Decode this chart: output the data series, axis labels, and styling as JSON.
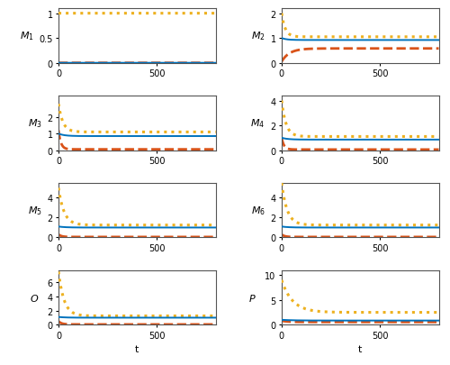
{
  "panels": [
    {
      "label": "M_1",
      "ylim": [
        0,
        1.1
      ],
      "yticks": [
        0,
        0.5,
        1
      ],
      "curves": [
        {
          "color": "#0072BD",
          "ls": "solid",
          "lw": 1.4,
          "start": 0.0,
          "steady": 0.0,
          "tau": 0
        },
        {
          "color": "#D95319",
          "ls": "dashed",
          "lw": 2.0,
          "start": 0.0,
          "steady": 0.0,
          "tau": 0
        },
        {
          "color": "#EDB120",
          "ls": "dotted",
          "lw": 2.2,
          "start": 1.0,
          "steady": 1.0,
          "tau": 0
        }
      ]
    },
    {
      "label": "M_2",
      "ylim": [
        0,
        2.2
      ],
      "yticks": [
        0,
        1,
        2
      ],
      "curves": [
        {
          "color": "#0072BD",
          "ls": "solid",
          "lw": 1.4,
          "start": 1.0,
          "steady": 0.92,
          "tau": 25
        },
        {
          "color": "#D95319",
          "ls": "dashed",
          "lw": 2.0,
          "start": 0.05,
          "steady": 0.58,
          "tau": 40
        },
        {
          "color": "#EDB120",
          "ls": "dotted",
          "lw": 2.2,
          "start": 2.0,
          "steady": 1.05,
          "tau": 18
        }
      ]
    },
    {
      "label": "M_3",
      "ylim": [
        0,
        3.3
      ],
      "yticks": [
        0,
        1,
        2
      ],
      "curves": [
        {
          "color": "#0072BD",
          "ls": "solid",
          "lw": 1.4,
          "start": 1.0,
          "steady": 0.85,
          "tau": 30
        },
        {
          "color": "#D95319",
          "ls": "dashed",
          "lw": 2.0,
          "start": 1.2,
          "steady": 0.05,
          "tau": 12
        },
        {
          "color": "#EDB120",
          "ls": "dotted",
          "lw": 2.2,
          "start": 2.8,
          "steady": 1.1,
          "tau": 22
        }
      ]
    },
    {
      "label": "M_4",
      "ylim": [
        0,
        4.4
      ],
      "yticks": [
        0,
        2,
        4
      ],
      "curves": [
        {
          "color": "#0072BD",
          "ls": "solid",
          "lw": 1.4,
          "start": 1.0,
          "steady": 0.85,
          "tau": 30
        },
        {
          "color": "#D95319",
          "ls": "dashed",
          "lw": 2.0,
          "start": 1.0,
          "steady": 0.05,
          "tau": 12
        },
        {
          "color": "#EDB120",
          "ls": "dotted",
          "lw": 2.2,
          "start": 4.0,
          "steady": 1.1,
          "tau": 22
        }
      ]
    },
    {
      "label": "M_5",
      "ylim": [
        0,
        5.5
      ],
      "yticks": [
        0,
        2,
        4
      ],
      "curves": [
        {
          "color": "#0072BD",
          "ls": "solid",
          "lw": 1.4,
          "start": 1.1,
          "steady": 1.0,
          "tau": 35
        },
        {
          "color": "#D95319",
          "ls": "dashed",
          "lw": 2.0,
          "start": 0.3,
          "steady": 0.05,
          "tau": 15
        },
        {
          "color": "#EDB120",
          "ls": "dotted",
          "lw": 2.2,
          "start": 5.0,
          "steady": 1.25,
          "tau": 28
        }
      ]
    },
    {
      "label": "M_6",
      "ylim": [
        0,
        5.5
      ],
      "yticks": [
        0,
        2,
        4
      ],
      "curves": [
        {
          "color": "#0072BD",
          "ls": "solid",
          "lw": 1.4,
          "start": 1.1,
          "steady": 1.0,
          "tau": 35
        },
        {
          "color": "#D95319",
          "ls": "dashed",
          "lw": 2.0,
          "start": 0.3,
          "steady": 0.05,
          "tau": 15
        },
        {
          "color": "#EDB120",
          "ls": "dotted",
          "lw": 2.2,
          "start": 5.5,
          "steady": 1.25,
          "tau": 28
        }
      ]
    },
    {
      "label": "O",
      "ylim": [
        0,
        7.7
      ],
      "yticks": [
        0,
        2,
        4,
        6
      ],
      "curves": [
        {
          "color": "#0072BD",
          "ls": "solid",
          "lw": 1.4,
          "start": 1.1,
          "steady": 1.0,
          "tau": 35
        },
        {
          "color": "#D95319",
          "ls": "dashed",
          "lw": 2.0,
          "start": 0.5,
          "steady": 0.05,
          "tau": 15
        },
        {
          "color": "#EDB120",
          "ls": "dotted",
          "lw": 2.2,
          "start": 7.5,
          "steady": 1.25,
          "tau": 28
        }
      ]
    },
    {
      "label": "P",
      "ylim": [
        0,
        11.0
      ],
      "yticks": [
        0,
        5,
        10
      ],
      "curves": [
        {
          "color": "#0072BD",
          "ls": "solid",
          "lw": 1.4,
          "start": 1.0,
          "steady": 0.85,
          "tau": 60
        },
        {
          "color": "#D95319",
          "ls": "dashed",
          "lw": 2.0,
          "start": 0.8,
          "steady": 0.55,
          "tau": 30
        },
        {
          "color": "#EDB120",
          "ls": "dotted",
          "lw": 2.2,
          "start": 9.0,
          "steady": 2.5,
          "tau": 55
        }
      ]
    }
  ],
  "t_max": 800,
  "xticks": [
    0,
    500
  ],
  "xlim": [
    0,
    800
  ]
}
